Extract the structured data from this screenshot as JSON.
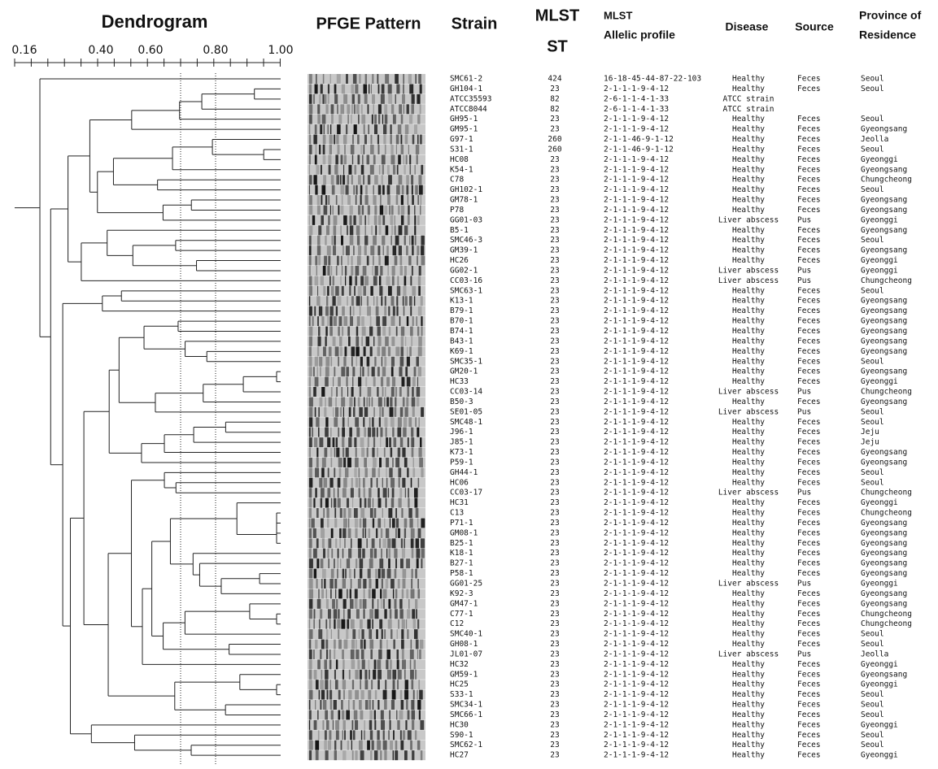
{
  "header": {
    "dendrogram": "Dendrogram",
    "pfge": "PFGE Pattern",
    "strain": "Strain",
    "mlst_st": [
      "MLST",
      "ST"
    ],
    "allelic": [
      "MLST",
      "Allelic profile"
    ],
    "disease": "Disease",
    "source": "Source",
    "province": [
      "Province of",
      "Residence"
    ]
  },
  "scale": [
    "0.16",
    "0.40",
    "0.60",
    "0.80",
    "1.00"
  ],
  "rows": [
    [
      "SMC61-2",
      424,
      "16-18-45-44-87-22-103",
      "Healthy",
      "Feces",
      "Seoul"
    ],
    [
      "GH104-1",
      23,
      "2-1-1-1-9-4-12",
      "Healthy",
      "Feces",
      "Seoul"
    ],
    [
      "ATCC35593",
      82,
      "2-6-1-1-4-1-33",
      "ATCC strain"
    ],
    [
      "ATCC8044",
      82,
      "2-6-1-1-4-1-33",
      "ATCC strain"
    ],
    [
      "GH95-1",
      23,
      "2-1-1-1-9-4-12",
      "Healthy",
      "Feces",
      "Seoul"
    ],
    [
      "GM95-1",
      23,
      "2-1-1-1-9-4-12",
      "Healthy",
      "Feces",
      "Gyeongsang"
    ],
    [
      "G97-1",
      260,
      "2-1-1-46-9-1-12",
      "Healthy",
      "Feces",
      "Jeolla"
    ],
    [
      "S31-1",
      260,
      "2-1-1-46-9-1-12",
      "Healthy",
      "Feces",
      "Seoul"
    ],
    [
      "HC08",
      23,
      "2-1-1-1-9-4-12",
      "Healthy",
      "Feces",
      "Gyeonggi"
    ],
    [
      "K54-1",
      23,
      "2-1-1-1-9-4-12",
      "Healthy",
      "Feces",
      "Gyeongsang"
    ],
    [
      "C78",
      23,
      "2-1-1-1-9-4-12",
      "Healthy",
      "Feces",
      "Chungcheong"
    ],
    [
      "GH102-1",
      23,
      "2-1-1-1-9-4-12",
      "Healthy",
      "Feces",
      "Seoul"
    ],
    [
      "GM78-1",
      23,
      "2-1-1-1-9-4-12",
      "Healthy",
      "Feces",
      "Gyeongsang"
    ],
    [
      "P78",
      23,
      "2-1-1-1-9-4-12",
      "Healthy",
      "Feces",
      "Gyeongsang"
    ],
    [
      "GG01-03",
      23,
      "2-1-1-1-9-4-12",
      "Liver abscess",
      "Pus",
      "Gyeonggi"
    ],
    [
      "B5-1",
      23,
      "2-1-1-1-9-4-12",
      "Healthy",
      "Feces",
      "Gyeongsang"
    ],
    [
      "SMC46-3",
      23,
      "2-1-1-1-9-4-12",
      "Healthy",
      "Feces",
      "Seoul"
    ],
    [
      "GM39-1",
      23,
      "2-1-1-1-9-4-12",
      "Healthy",
      "Feces",
      "Gyeongsang"
    ],
    [
      "HC26",
      23,
      "2-1-1-1-9-4-12",
      "Healthy",
      "Feces",
      "Gyeonggi"
    ],
    [
      "GG02-1",
      23,
      "2-1-1-1-9-4-12",
      "Liver abscess",
      "Pus",
      "Gyeonggi"
    ],
    [
      "CC03-16",
      23,
      "2-1-1-1-9-4-12",
      "Liver abscess",
      "Pus",
      "Chungcheong"
    ],
    [
      "SMC63-1",
      23,
      "2-1-1-1-9-4-12",
      "Healthy",
      "Feces",
      "Seoul"
    ],
    [
      "K13-1",
      23,
      "2-1-1-1-9-4-12",
      "Healthy",
      "Feces",
      "Gyeongsang"
    ],
    [
      "B79-1",
      23,
      "2-1-1-1-9-4-12",
      "Healthy",
      "Feces",
      "Gyeongsang"
    ],
    [
      "B70-1",
      23,
      "2-1-1-1-9-4-12",
      "Healthy",
      "Feces",
      "Gyeongsang"
    ],
    [
      "B74-1",
      23,
      "2-1-1-1-9-4-12",
      "Healthy",
      "Feces",
      "Gyeongsang"
    ],
    [
      "B43-1",
      23,
      "2-1-1-1-9-4-12",
      "Healthy",
      "Feces",
      "Gyeongsang"
    ],
    [
      "K69-1",
      23,
      "2-1-1-1-9-4-12",
      "Healthy",
      "Feces",
      "Gyeongsang"
    ],
    [
      "SMC35-1",
      23,
      "2-1-1-1-9-4-12",
      "Healthy",
      "Feces",
      "Seoul"
    ],
    [
      "GM20-1",
      23,
      "2-1-1-1-9-4-12",
      "Healthy",
      "Feces",
      "Gyeongsang"
    ],
    [
      "HC33",
      23,
      "2-1-1-1-9-4-12",
      "Healthy",
      "Feces",
      "Gyeonggi"
    ],
    [
      "CC03-14",
      23,
      "2-1-1-1-9-4-12",
      "Liver abscess",
      "Pus",
      "Chungcheong"
    ],
    [
      "B50-3",
      23,
      "2-1-1-1-9-4-12",
      "Healthy",
      "Feces",
      "Gyeongsang"
    ],
    [
      "SE01-05",
      23,
      "2-1-1-1-9-4-12",
      "Liver abscess",
      "Pus",
      "Seoul"
    ],
    [
      "SMC48-1",
      23,
      "2-1-1-1-9-4-12",
      "Healthy",
      "Feces",
      "Seoul"
    ],
    [
      "J96-1",
      23,
      "2-1-1-1-9-4-12",
      "Healthy",
      "Feces",
      "Jeju"
    ],
    [
      "J85-1",
      23,
      "2-1-1-1-9-4-12",
      "Healthy",
      "Feces",
      "Jeju"
    ],
    [
      "K73-1",
      23,
      "2-1-1-1-9-4-12",
      "Healthy",
      "Feces",
      "Gyeongsang"
    ],
    [
      "P59-1",
      23,
      "2-1-1-1-9-4-12",
      "Healthy",
      "Feces",
      "Gyeongsang"
    ],
    [
      "GH44-1",
      23,
      "2-1-1-1-9-4-12",
      "Healthy",
      "Feces",
      "Seoul"
    ],
    [
      "HC06",
      23,
      "2-1-1-1-9-4-12",
      "Healthy",
      "Feces",
      "Seoul"
    ],
    [
      "CC03-17",
      23,
      "2-1-1-1-9-4-12",
      "Liver abscess",
      "Pus",
      "Chungcheong"
    ],
    [
      "HC31",
      23,
      "2-1-1-1-9-4-12",
      "Healthy",
      "Feces",
      "Gyeonggi"
    ],
    [
      "C13",
      23,
      "2-1-1-1-9-4-12",
      "Healthy",
      "Feces",
      "Chungcheong"
    ],
    [
      "P71-1",
      23,
      "2-1-1-1-9-4-12",
      "Healthy",
      "Feces",
      "Gyeongsang"
    ],
    [
      "GM08-1",
      23,
      "2-1-1-1-9-4-12",
      "Healthy",
      "Feces",
      "Gyeongsang"
    ],
    [
      "B25-1",
      23,
      "2-1-1-1-9-4-12",
      "Healthy",
      "Feces",
      "Gyeongsang"
    ],
    [
      "K18-1",
      23,
      "2-1-1-1-9-4-12",
      "Healthy",
      "Feces",
      "Gyeongsang"
    ],
    [
      "B27-1",
      23,
      "2-1-1-1-9-4-12",
      "Healthy",
      "Feces",
      "Gyeongsang"
    ],
    [
      "P58-1",
      23,
      "2-1-1-1-9-4-12",
      "Healthy",
      "Feces",
      "Gyeongsang"
    ],
    [
      "GG01-25",
      23,
      "2-1-1-1-9-4-12",
      "Liver abscess",
      "Pus",
      "Gyeonggi"
    ],
    [
      "K92-3",
      23,
      "2-1-1-1-9-4-12",
      "Healthy",
      "Feces",
      "Gyeongsang"
    ],
    [
      "GM47-1",
      23,
      "2-1-1-1-9-4-12",
      "Healthy",
      "Feces",
      "Gyeongsang"
    ],
    [
      "C77-1",
      23,
      "2-1-1-1-9-4-12",
      "Healthy",
      "Feces",
      "Chungcheong"
    ],
    [
      "C12",
      23,
      "2-1-1-1-9-4-12",
      "Healthy",
      "Feces",
      "Chungcheong"
    ],
    [
      "SMC40-1",
      23,
      "2-1-1-1-9-4-12",
      "Healthy",
      "Feces",
      "Seoul"
    ],
    [
      "GH08-1",
      23,
      "2-1-1-1-9-4-12",
      "Healthy",
      "Feces",
      "Seoul"
    ],
    [
      "JL01-07",
      23,
      "2-1-1-1-9-4-12",
      "Liver abscess",
      "Pus",
      "Jeolla"
    ],
    [
      "HC32",
      23,
      "2-1-1-1-9-4-12",
      "Healthy",
      "Feces",
      "Gyeonggi"
    ],
    [
      "GM59-1",
      23,
      "2-1-1-1-9-4-12",
      "Healthy",
      "Feces",
      "Gyeongsang"
    ],
    [
      "HC25",
      23,
      "2-1-1-1-9-4-12",
      "Healthy",
      "Feces",
      "Gyeonggi"
    ],
    [
      "S33-1",
      23,
      "2-1-1-1-9-4-12",
      "Healthy",
      "Feces",
      "Seoul"
    ],
    [
      "SMC34-1",
      23,
      "2-1-1-1-9-4-12",
      "Healthy",
      "Feces",
      "Seoul"
    ],
    [
      "SMC66-1",
      23,
      "2-1-1-1-9-4-12",
      "Healthy",
      "Feces",
      "Seoul"
    ],
    [
      "HC30",
      23,
      "2-1-1-1-9-4-12",
      "Healthy",
      "Feces",
      "Gyeonggi"
    ],
    [
      "S90-1",
      23,
      "2-1-1-1-9-4-12",
      "Healthy",
      "Feces",
      "Seoul"
    ],
    [
      "SMC62-1",
      23,
      "2-1-1-1-9-4-12",
      "Healthy",
      "Feces",
      "Seoul"
    ],
    [
      "HC27",
      23,
      "2-1-1-1-9-4-12",
      "Healthy",
      "Feces",
      "Gyeonggi"
    ]
  ]
}
